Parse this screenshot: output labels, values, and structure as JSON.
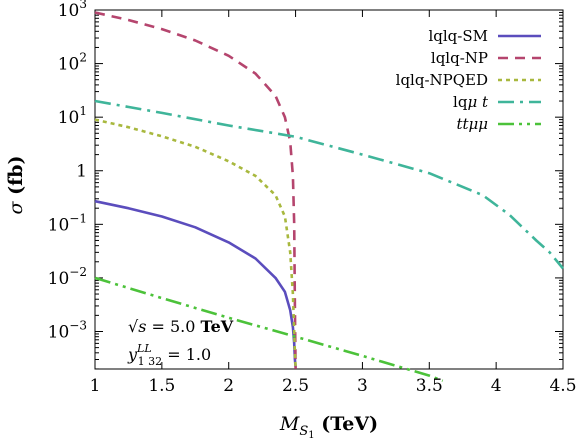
{
  "chart_data": {
    "type": "line",
    "xlabel": "M_{S_1} (TeV)",
    "xlabel_main": "M",
    "xlabel_sub": "S",
    "xlabel_subsub": "1",
    "xlabel_unit": " (TeV)",
    "ylabel": "σ (fb)",
    "ylabel_main": "σ",
    "ylabel_unit": " (fb)",
    "xlim": [
      1,
      4.5
    ],
    "ylim_exponent": [
      -3.7,
      3
    ],
    "y_scale": "log",
    "grid": false,
    "legend_position": "top-right",
    "x_ticks": [
      {
        "value": 1,
        "label": "1"
      },
      {
        "value": 1.5,
        "label": "1.5"
      },
      {
        "value": 2,
        "label": "2"
      },
      {
        "value": 2.5,
        "label": "2.5"
      },
      {
        "value": 3,
        "label": "3"
      },
      {
        "value": 3.5,
        "label": "3.5"
      },
      {
        "value": 4,
        "label": "4"
      },
      {
        "value": 4.5,
        "label": "4.5"
      }
    ],
    "y_ticks": [
      {
        "value": 1000,
        "base": "10",
        "exp": "3"
      },
      {
        "value": 100,
        "base": "10",
        "exp": "2"
      },
      {
        "value": 10,
        "base": "10",
        "exp": "1"
      },
      {
        "value": 1,
        "base": "1",
        "exp": ""
      },
      {
        "value": 0.1,
        "base": "10",
        "exp": "−1"
      },
      {
        "value": 0.01,
        "base": "10",
        "exp": "−2"
      },
      {
        "value": 0.001,
        "base": "10",
        "exp": "−3"
      }
    ],
    "series": [
      {
        "name": "lqlq-SM",
        "color": "#5b4dbd",
        "dash": "solid",
        "x": [
          1,
          1.25,
          1.5,
          1.75,
          2,
          2.2,
          2.35,
          2.42,
          2.46,
          2.48,
          2.49,
          2.495,
          2.5
        ],
        "y": [
          0.27,
          0.2,
          0.14,
          0.088,
          0.046,
          0.023,
          0.01,
          0.0055,
          0.0025,
          0.0012,
          0.0006,
          0.0003,
          0.00022
        ]
      },
      {
        "name": "lqlq-NP",
        "color": "#b5456e",
        "dash": "dashed",
        "x": [
          1,
          1.25,
          1.5,
          1.75,
          2,
          2.2,
          2.35,
          2.42,
          2.46,
          2.48,
          2.49,
          2.495,
          2.5
        ],
        "y": [
          900,
          650,
          440,
          270,
          140,
          65,
          25,
          10,
          3.5,
          0.8,
          0.1,
          0.003,
          0.0002
        ]
      },
      {
        "name": "lqlq-NPQED",
        "color": "#a8b83e",
        "dash": "dotted",
        "x": [
          1,
          1.25,
          1.5,
          1.75,
          2,
          2.2,
          2.35,
          2.42,
          2.46,
          2.48,
          2.49,
          2.495,
          2.5
        ],
        "y": [
          9,
          6.5,
          4.4,
          2.8,
          1.5,
          0.8,
          0.35,
          0.14,
          0.03,
          0.005,
          0.001,
          0.0004,
          0.00022
        ]
      },
      {
        "name": "lqμ t",
        "name_main": "lq",
        "name_mu": "μ",
        "name_t": " t",
        "color": "#3fb59a",
        "dash": "dashdot",
        "x": [
          1,
          1.5,
          2,
          2.5,
          3,
          3.5,
          3.9,
          4.1,
          4.3,
          4.4,
          4.5
        ],
        "y": [
          20,
          12,
          7,
          4.3,
          2,
          0.9,
          0.35,
          0.15,
          0.05,
          0.03,
          0.015
        ]
      },
      {
        "name": "ttμμ",
        "name_main": "tt",
        "name_mu": "μμ",
        "color": "#4cc23a",
        "dash": "dashdotdot",
        "x": [
          1,
          1.5,
          2,
          2.5,
          3,
          3.5,
          3.6
        ],
        "y": [
          0.01,
          0.0042,
          0.0018,
          0.0008,
          0.00035,
          0.00015,
          0.00012
        ]
      }
    ],
    "annotations": {
      "sqrt_s_label": "√s",
      "sqrt_s_value": " = 5.0 ",
      "sqrt_s_unit": "TeV",
      "coupling_base": "y",
      "coupling_sup": "LL",
      "coupling_sub": "1 32",
      "coupling_value": " = 1.0"
    }
  }
}
